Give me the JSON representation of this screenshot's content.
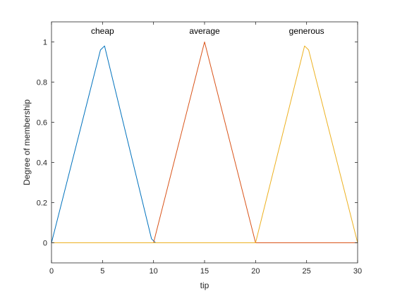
{
  "chart_data": {
    "type": "line",
    "title": "",
    "xlabel": "tip",
    "ylabel": "Degree of membership",
    "xlim": [
      0,
      30
    ],
    "ylim": [
      -0.1,
      1.1
    ],
    "xticks": [
      0,
      5,
      10,
      15,
      20,
      25,
      30
    ],
    "yticks": [
      0,
      0.2,
      0.4,
      0.6,
      0.8,
      1
    ],
    "xtick_labels": [
      "0",
      "5",
      "10",
      "15",
      "20",
      "25",
      "30"
    ],
    "ytick_labels": [
      "0",
      "0.2",
      "0.4",
      "0.6",
      "0.8",
      "1"
    ],
    "grid": false,
    "series": [
      {
        "name": "cheap",
        "color": "#0072BD",
        "x": [
          0,
          4.8,
          5.2,
          9.8,
          10.2,
          30
        ],
        "y": [
          0,
          0.96,
          0.98,
          0.02,
          0,
          0
        ]
      },
      {
        "name": "average",
        "color": "#D95319",
        "x": [
          0,
          10,
          15,
          20,
          30
        ],
        "y": [
          0,
          0,
          1,
          0,
          0
        ]
      },
      {
        "name": "generous",
        "color": "#EDB120",
        "x": [
          0,
          20,
          24.8,
          25.2,
          30
        ],
        "y": [
          0,
          0,
          0.98,
          0.96,
          0
        ]
      }
    ],
    "annotations": [
      {
        "text": "cheap",
        "x": 5,
        "y": 1.04,
        "series": 0
      },
      {
        "text": "average",
        "x": 15,
        "y": 1.04,
        "series": 1
      },
      {
        "text": "generous",
        "x": 25,
        "y": 1.04,
        "series": 2
      }
    ]
  }
}
